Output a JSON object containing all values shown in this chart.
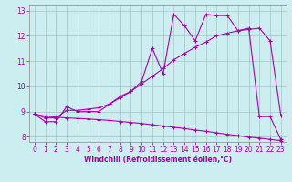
{
  "xlabel": "Windchill (Refroidissement éolien,°C)",
  "bg_color": "#cceef0",
  "line_color": "#aa00aa",
  "grid_color": "#aacccc",
  "x_values": [
    0,
    1,
    2,
    3,
    4,
    5,
    6,
    7,
    8,
    9,
    10,
    11,
    12,
    13,
    14,
    15,
    16,
    17,
    18,
    19,
    20,
    21,
    22,
    23
  ],
  "line_jagged": [
    8.9,
    8.6,
    8.6,
    9.2,
    9.0,
    9.0,
    9.0,
    9.3,
    9.6,
    9.8,
    10.2,
    11.5,
    10.5,
    12.85,
    12.4,
    11.8,
    12.85,
    12.8,
    12.8,
    12.2,
    12.3,
    8.8,
    8.8,
    7.9
  ],
  "line_trend_up": [
    8.9,
    8.75,
    8.75,
    9.05,
    9.05,
    9.1,
    9.15,
    9.3,
    9.55,
    9.8,
    10.1,
    10.4,
    10.7,
    11.05,
    11.3,
    11.55,
    11.75,
    12.0,
    12.1,
    12.2,
    12.25,
    12.3,
    11.8,
    8.85
  ],
  "line_trend_down": [
    8.9,
    8.82,
    8.78,
    8.75,
    8.73,
    8.71,
    8.68,
    8.65,
    8.61,
    8.57,
    8.53,
    8.48,
    8.43,
    8.38,
    8.33,
    8.27,
    8.22,
    8.16,
    8.1,
    8.05,
    7.99,
    7.95,
    7.9,
    7.85
  ],
  "ylim": [
    7.8,
    13.2
  ],
  "xlim": [
    -0.5,
    23.5
  ],
  "yticks": [
    8,
    9,
    10,
    11,
    12,
    13
  ],
  "xticks": [
    0,
    1,
    2,
    3,
    4,
    5,
    6,
    7,
    8,
    9,
    10,
    11,
    12,
    13,
    14,
    15,
    16,
    17,
    18,
    19,
    20,
    21,
    22,
    23
  ]
}
